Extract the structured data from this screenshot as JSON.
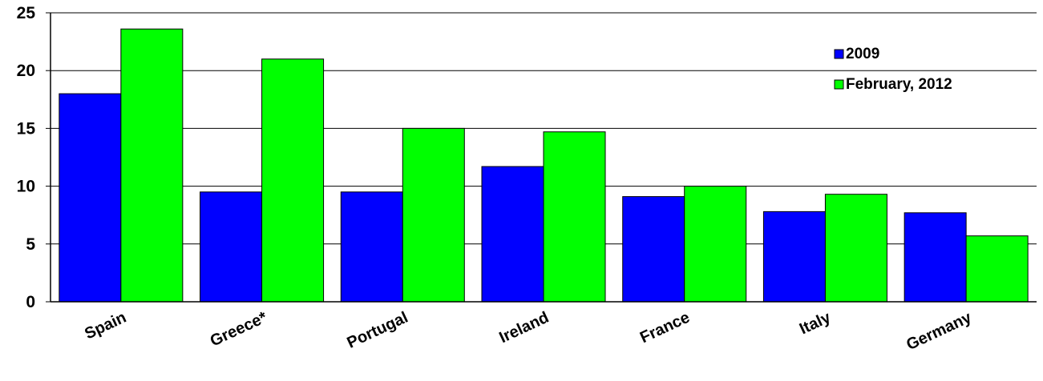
{
  "chart_data": {
    "type": "bar",
    "categories": [
      "Spain",
      "Greece*",
      "Portugal",
      "Ireland",
      "France",
      "Italy",
      "Germany"
    ],
    "series": [
      {
        "name": "2009",
        "color": "#0000ff",
        "values": [
          18.0,
          9.5,
          9.5,
          11.7,
          9.1,
          7.8,
          7.7
        ]
      },
      {
        "name": "February, 2012",
        "color": "#00ff00",
        "values": [
          23.6,
          21.0,
          15.0,
          14.7,
          10.0,
          9.3,
          5.7
        ]
      }
    ],
    "ylim": [
      0,
      25
    ],
    "yticks": [
      "0",
      "5",
      "10",
      "15",
      "20",
      "25"
    ],
    "grid": true,
    "legend_position": "top-right"
  }
}
